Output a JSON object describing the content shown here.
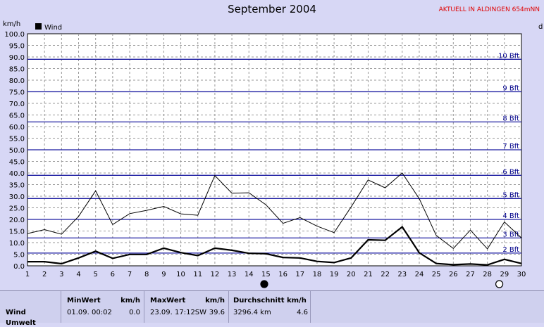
{
  "title": "September 2004",
  "subtitle": "AKTUELL IN ALDINGEN 654mNN",
  "chart_data": {
    "type": "line",
    "y_unit": "km/h",
    "right_unit_fragment": "d",
    "legend": "Wind",
    "ylim": [
      0,
      100
    ],
    "yticks": [
      "0.0",
      "5.0",
      "10.0",
      "15.0",
      "20.0",
      "25.0",
      "30.0",
      "35.0",
      "40.0",
      "45.0",
      "50.0",
      "55.0",
      "60.0",
      "65.0",
      "70.0",
      "75.0",
      "80.0",
      "85.0",
      "90.0",
      "95.0",
      "100.0"
    ],
    "x": [
      1,
      2,
      3,
      4,
      5,
      6,
      7,
      8,
      9,
      10,
      11,
      12,
      13,
      14,
      15,
      16,
      17,
      18,
      19,
      20,
      21,
      22,
      23,
      24,
      25,
      26,
      27,
      28,
      29,
      30
    ],
    "series": [
      {
        "name": "Wind",
        "role": "average",
        "values": [
          1.8,
          1.8,
          0.9,
          3.4,
          6.3,
          3.2,
          4.9,
          4.9,
          7.6,
          5.7,
          4.4,
          7.6,
          6.7,
          5.4,
          5.2,
          3.6,
          3.4,
          1.9,
          1.4,
          3.4,
          11.2,
          11.0,
          16.8,
          5.6,
          1.0,
          0.5,
          0.8,
          0.4,
          2.8,
          1.0
        ]
      },
      {
        "name": "",
        "role": "gust",
        "values": [
          13.9,
          15.6,
          13.6,
          21.3,
          32.3,
          17.8,
          22.5,
          23.9,
          25.6,
          22.4,
          21.8,
          38.9,
          31.3,
          31.5,
          26.3,
          18.3,
          20.8,
          17.1,
          14.3,
          25.4,
          37.0,
          33.6,
          40.0,
          28.9,
          13.1,
          7.5,
          15.4,
          7.3,
          18.9,
          12.0
        ]
      }
    ],
    "beaufort": [
      {
        "label": "2 Bft",
        "value": 5.5
      },
      {
        "label": "3 Bft",
        "value": 12.0
      },
      {
        "label": "4 Bft",
        "value": 20.0
      },
      {
        "label": "5 Bft",
        "value": 29.0
      },
      {
        "label": "6 Bft",
        "value": 39.0
      },
      {
        "label": "7 Bft",
        "value": 50.0
      },
      {
        "label": "8 Bft",
        "value": 62.0
      },
      {
        "label": "9 Bft",
        "value": 75.0
      },
      {
        "label": "10 Bft",
        "value": 89.0
      }
    ],
    "moon_markers": [
      {
        "day": 14.9,
        "phase": "new"
      },
      {
        "day": 28.7,
        "phase": "full"
      }
    ]
  },
  "stats": {
    "row_label": "Wind",
    "row_label_next": "Umwelt",
    "min_header": "MinWert",
    "min_unit": "km/h",
    "min_when": "01.09.  00:02",
    "min_value": "0.0",
    "max_header": "MaxWert",
    "max_unit": "km/h",
    "max_when": "23.09.  17:12SW",
    "max_value": "39.6",
    "avg_header": "Durchschnitt km/h",
    "avg_distance": "3296.4 km",
    "avg_value": "4.6"
  }
}
